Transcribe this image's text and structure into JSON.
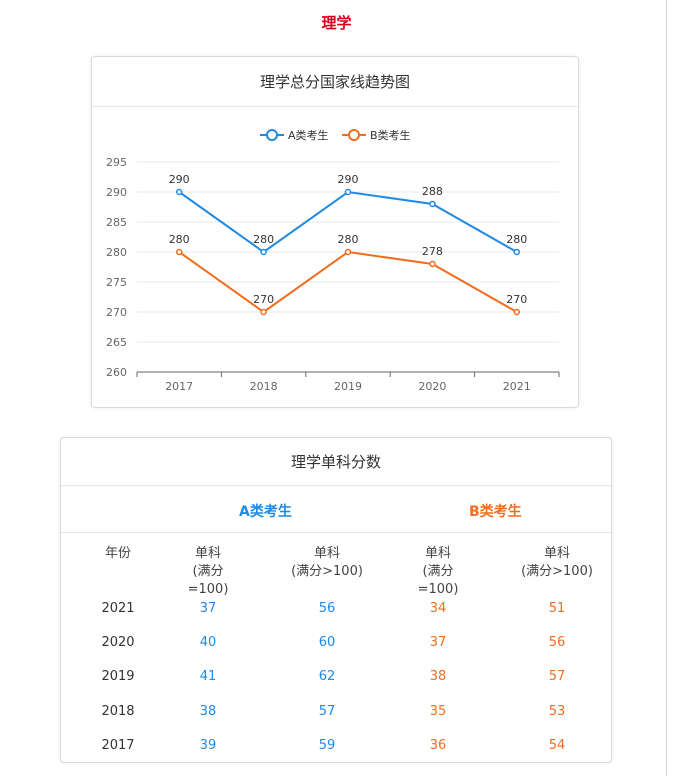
{
  "page_title": "理学",
  "chart_card": {
    "title": "理学总分国家线趋势图"
  },
  "chart_data": {
    "type": "line",
    "title": "理学总分国家线趋势图",
    "categories": [
      "2017",
      "2018",
      "2019",
      "2020",
      "2021"
    ],
    "series": [
      {
        "name": "A类考生",
        "values": [
          290,
          280,
          290,
          288,
          280
        ],
        "color": "#1f8ae6"
      },
      {
        "name": "B类考生",
        "values": [
          280,
          270,
          280,
          278,
          270
        ],
        "color": "#f26d1d"
      }
    ],
    "ylim": [
      260,
      295
    ],
    "yticks": [
      260,
      265,
      270,
      275,
      280,
      285,
      290,
      295
    ],
    "grid": true,
    "legend": "top-center"
  },
  "table": {
    "title": "理学单科分数",
    "group_a": "A类考生",
    "group_b": "B类考生",
    "headers": {
      "year": "年份",
      "c1": [
        "单科",
        "(满分=100)"
      ],
      "c2": [
        "单科",
        "(满分>100)"
      ],
      "c3": [
        "单科",
        "(满分=100)"
      ],
      "c4": [
        "单科",
        "(满分>100)"
      ]
    },
    "rows": [
      {
        "year": "2021",
        "a1": "37",
        "a2": "56",
        "b1": "34",
        "b2": "51"
      },
      {
        "year": "2020",
        "a1": "40",
        "a2": "60",
        "b1": "37",
        "b2": "56"
      },
      {
        "year": "2019",
        "a1": "41",
        "a2": "62",
        "b1": "38",
        "b2": "57"
      },
      {
        "year": "2018",
        "a1": "38",
        "a2": "57",
        "b1": "35",
        "b2": "53"
      },
      {
        "year": "2017",
        "a1": "39",
        "a2": "59",
        "b1": "36",
        "b2": "54"
      }
    ]
  }
}
